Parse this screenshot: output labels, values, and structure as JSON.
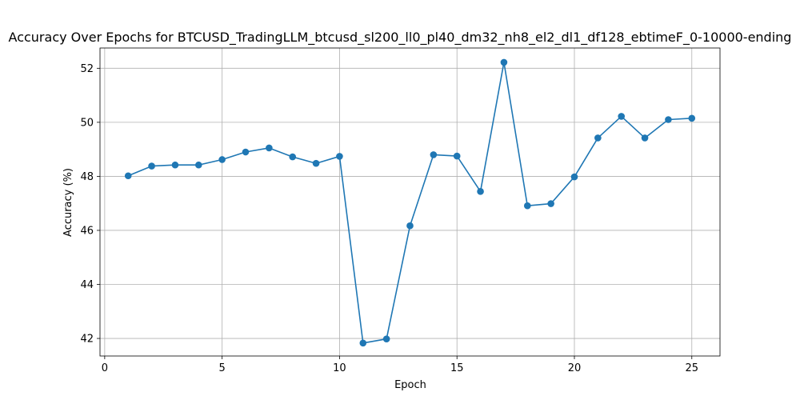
{
  "chart_data": {
    "type": "line",
    "title": "Accuracy Over Epochs for BTCUSD_TradingLLM_btcusd_sl200_ll0_pl40_dm32_nh8_el2_dl1_df128_ebtimeF_0-10000-ending",
    "xlabel": "Epoch",
    "ylabel": "Accuracy (%)",
    "xlim": [
      -0.2,
      26.2
    ],
    "ylim": [
      41.35,
      52.75
    ],
    "xticks": [
      0,
      5,
      10,
      15,
      20,
      25
    ],
    "yticks": [
      42,
      44,
      46,
      48,
      50,
      52
    ],
    "grid": true,
    "color": "#1f77b4",
    "marker": "circle",
    "x": [
      1,
      2,
      3,
      4,
      5,
      6,
      7,
      8,
      9,
      10,
      11,
      12,
      13,
      14,
      15,
      16,
      17,
      18,
      19,
      20,
      21,
      22,
      23,
      24,
      25
    ],
    "y": [
      48.02,
      48.38,
      48.42,
      48.42,
      48.62,
      48.9,
      49.05,
      48.72,
      48.48,
      48.74,
      41.83,
      41.98,
      46.17,
      48.8,
      48.75,
      47.44,
      52.22,
      46.91,
      46.99,
      47.98,
      49.42,
      50.22,
      49.42,
      50.1,
      50.15
    ]
  }
}
